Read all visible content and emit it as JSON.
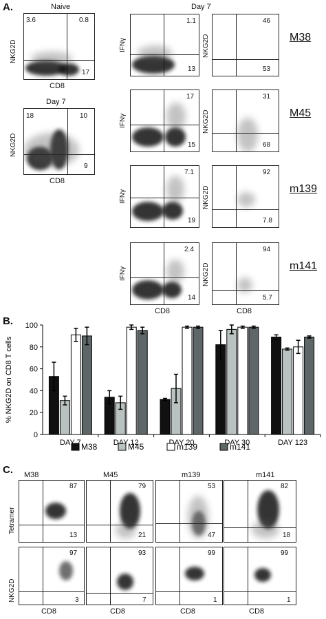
{
  "panel_a": {
    "letter": "A.",
    "naive_header": "Naive",
    "day7_header": "Day 7",
    "day7_left_label": "Day 7",
    "axis_nkg2d": "NKG2D",
    "axis_cd8": "CD8",
    "axis_ifng": "IFNγ",
    "naive_plot": {
      "ul": "3.6",
      "ur": "0.8",
      "lr": "17"
    },
    "day7_plot": {
      "ul": "18",
      "ur": "10",
      "lr": "9"
    },
    "rows": [
      {
        "strain": "M38",
        "ifng_ur": "1.1",
        "ifng_lr": "13",
        "nkg_ur": "46",
        "nkg_lr": "53"
      },
      {
        "strain": "M45",
        "ifng_ur": "17",
        "ifng_lr": "15",
        "nkg_ur": "31",
        "nkg_lr": "68"
      },
      {
        "strain": "m139",
        "ifng_ur": "7.1",
        "ifng_lr": "19",
        "nkg_ur": "92",
        "nkg_lr": "7.8"
      },
      {
        "strain": "m141",
        "ifng_ur": "2.4",
        "ifng_lr": "14",
        "nkg_ur": "94",
        "nkg_lr": "5.7"
      }
    ]
  },
  "panel_b": {
    "letter": "B."
  },
  "panel_c": {
    "letter": "C.",
    "axis_tetramer": "Tetramer",
    "axis_nkg2d": "NKG2D",
    "axis_cd8": "CD8",
    "columns": [
      {
        "name": "M38",
        "tet_ur": "87",
        "tet_lr": "13",
        "nkg_ur": "97",
        "nkg_lr": "3"
      },
      {
        "name": "M45",
        "tet_ur": "79",
        "tet_lr": "21",
        "nkg_ur": "93",
        "nkg_lr": "7"
      },
      {
        "name": "m139",
        "tet_ur": "53",
        "tet_lr": "47",
        "nkg_ur": "99",
        "nkg_lr": "1"
      },
      {
        "name": "m141",
        "tet_ur": "82",
        "tet_lr": "18",
        "nkg_ur": "99",
        "nkg_lr": "1"
      }
    ]
  },
  "chart_data": {
    "type": "bar",
    "title": "",
    "xlabel": "",
    "ylabel": "% NKG2D on CD8 T cells",
    "ylim": [
      0,
      100
    ],
    "yticks": [
      "0",
      "20",
      "40",
      "60",
      "80",
      "100"
    ],
    "categories": [
      "DAY 7",
      "DAY 12",
      "DAY 20",
      "DAY 30",
      "DAY 123"
    ],
    "series": [
      {
        "name": "M38",
        "color": "#111111",
        "values": [
          53,
          34,
          32,
          82,
          89
        ],
        "errors": [
          13,
          6,
          1,
          13,
          2
        ]
      },
      {
        "name": "M45",
        "color": "#b9c2c0",
        "values": [
          31,
          29,
          42,
          96,
          78
        ],
        "errors": [
          4,
          6,
          13,
          4,
          1
        ]
      },
      {
        "name": "m139",
        "color": "#ffffff",
        "values": [
          91,
          98,
          98,
          98,
          80
        ],
        "errors": [
          6,
          2,
          1,
          1,
          6
        ]
      },
      {
        "name": "m141",
        "color": "#5f6667",
        "values": [
          90,
          95,
          98,
          98,
          89
        ],
        "errors": [
          8,
          3,
          1,
          1,
          1
        ]
      }
    ],
    "legend_position": "bottom"
  }
}
